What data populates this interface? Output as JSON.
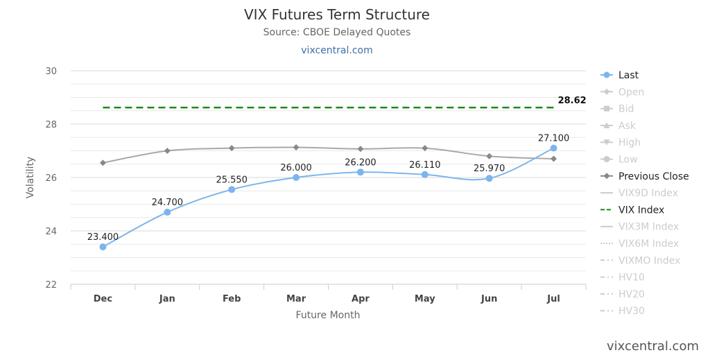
{
  "header": {
    "title": "VIX Futures Term Structure",
    "subtitle": "Source: CBOE Delayed Quotes",
    "link": "vixcentral.com"
  },
  "watermark": "vixcentral.com",
  "chart_data": {
    "type": "line",
    "title": "VIX Futures Term Structure",
    "subtitle": "Source: CBOE Delayed Quotes",
    "xlabel": "Future Month",
    "ylabel": "Volatility",
    "categories": [
      "Dec",
      "Jan",
      "Feb",
      "Mar",
      "Apr",
      "May",
      "Jun",
      "Jul"
    ],
    "ylim": [
      22,
      30
    ],
    "yticks": [
      22,
      24,
      26,
      28,
      30
    ],
    "grid": true,
    "legend_position": "right",
    "series": [
      {
        "name": "Last",
        "color": "#7cb5ec",
        "marker": "circle",
        "values": [
          23.4,
          24.7,
          25.55,
          26.0,
          26.2,
          26.11,
          25.97,
          27.1
        ],
        "labels": [
          "23.400",
          "24.700",
          "25.550",
          "26.000",
          "26.200",
          "26.110",
          "25.970",
          "27.100"
        ]
      },
      {
        "name": "Previous Close",
        "color": "#a8a8a8",
        "marker": "diamond",
        "values": [
          26.55,
          27.0,
          27.1,
          27.13,
          27.07,
          27.1,
          26.8,
          26.7
        ]
      },
      {
        "name": "VIX Index",
        "color": "#1a8a1a",
        "dash": "dashed",
        "value": 28.62,
        "label": "28.62"
      }
    ],
    "legend": [
      {
        "name": "Last",
        "symbol": "circle-line",
        "active": true,
        "color": "#7cb5ec"
      },
      {
        "name": "Open",
        "symbol": "diamond-line",
        "active": false,
        "color": "#cccccc"
      },
      {
        "name": "Bid",
        "symbol": "square-line",
        "active": false,
        "color": "#cccccc"
      },
      {
        "name": "Ask",
        "symbol": "triangle-line",
        "active": false,
        "color": "#cccccc"
      },
      {
        "name": "High",
        "symbol": "triangle-down-line",
        "active": false,
        "color": "#cccccc"
      },
      {
        "name": "Low",
        "symbol": "circle-line",
        "active": false,
        "color": "#cccccc"
      },
      {
        "name": "Previous Close",
        "symbol": "diamond-line",
        "active": true,
        "color": "#888888"
      },
      {
        "name": "VIX9D Index",
        "symbol": "line",
        "active": false,
        "color": "#cccccc"
      },
      {
        "name": "VIX Index",
        "symbol": "dash-line",
        "active": true,
        "color": "#1a8a1a"
      },
      {
        "name": "VIX3M Index",
        "symbol": "line",
        "active": false,
        "color": "#cccccc"
      },
      {
        "name": "VIX6M Index",
        "symbol": "dot-line",
        "active": false,
        "color": "#cccccc"
      },
      {
        "name": "VIXMO Index",
        "symbol": "dashdot-line",
        "active": false,
        "color": "#cccccc"
      },
      {
        "name": "HV10",
        "symbol": "dashdot-line",
        "active": false,
        "color": "#cccccc"
      },
      {
        "name": "HV20",
        "symbol": "dashdot-line",
        "active": false,
        "color": "#cccccc"
      },
      {
        "name": "HV30",
        "symbol": "dashdot-line",
        "active": false,
        "color": "#cccccc"
      }
    ]
  }
}
